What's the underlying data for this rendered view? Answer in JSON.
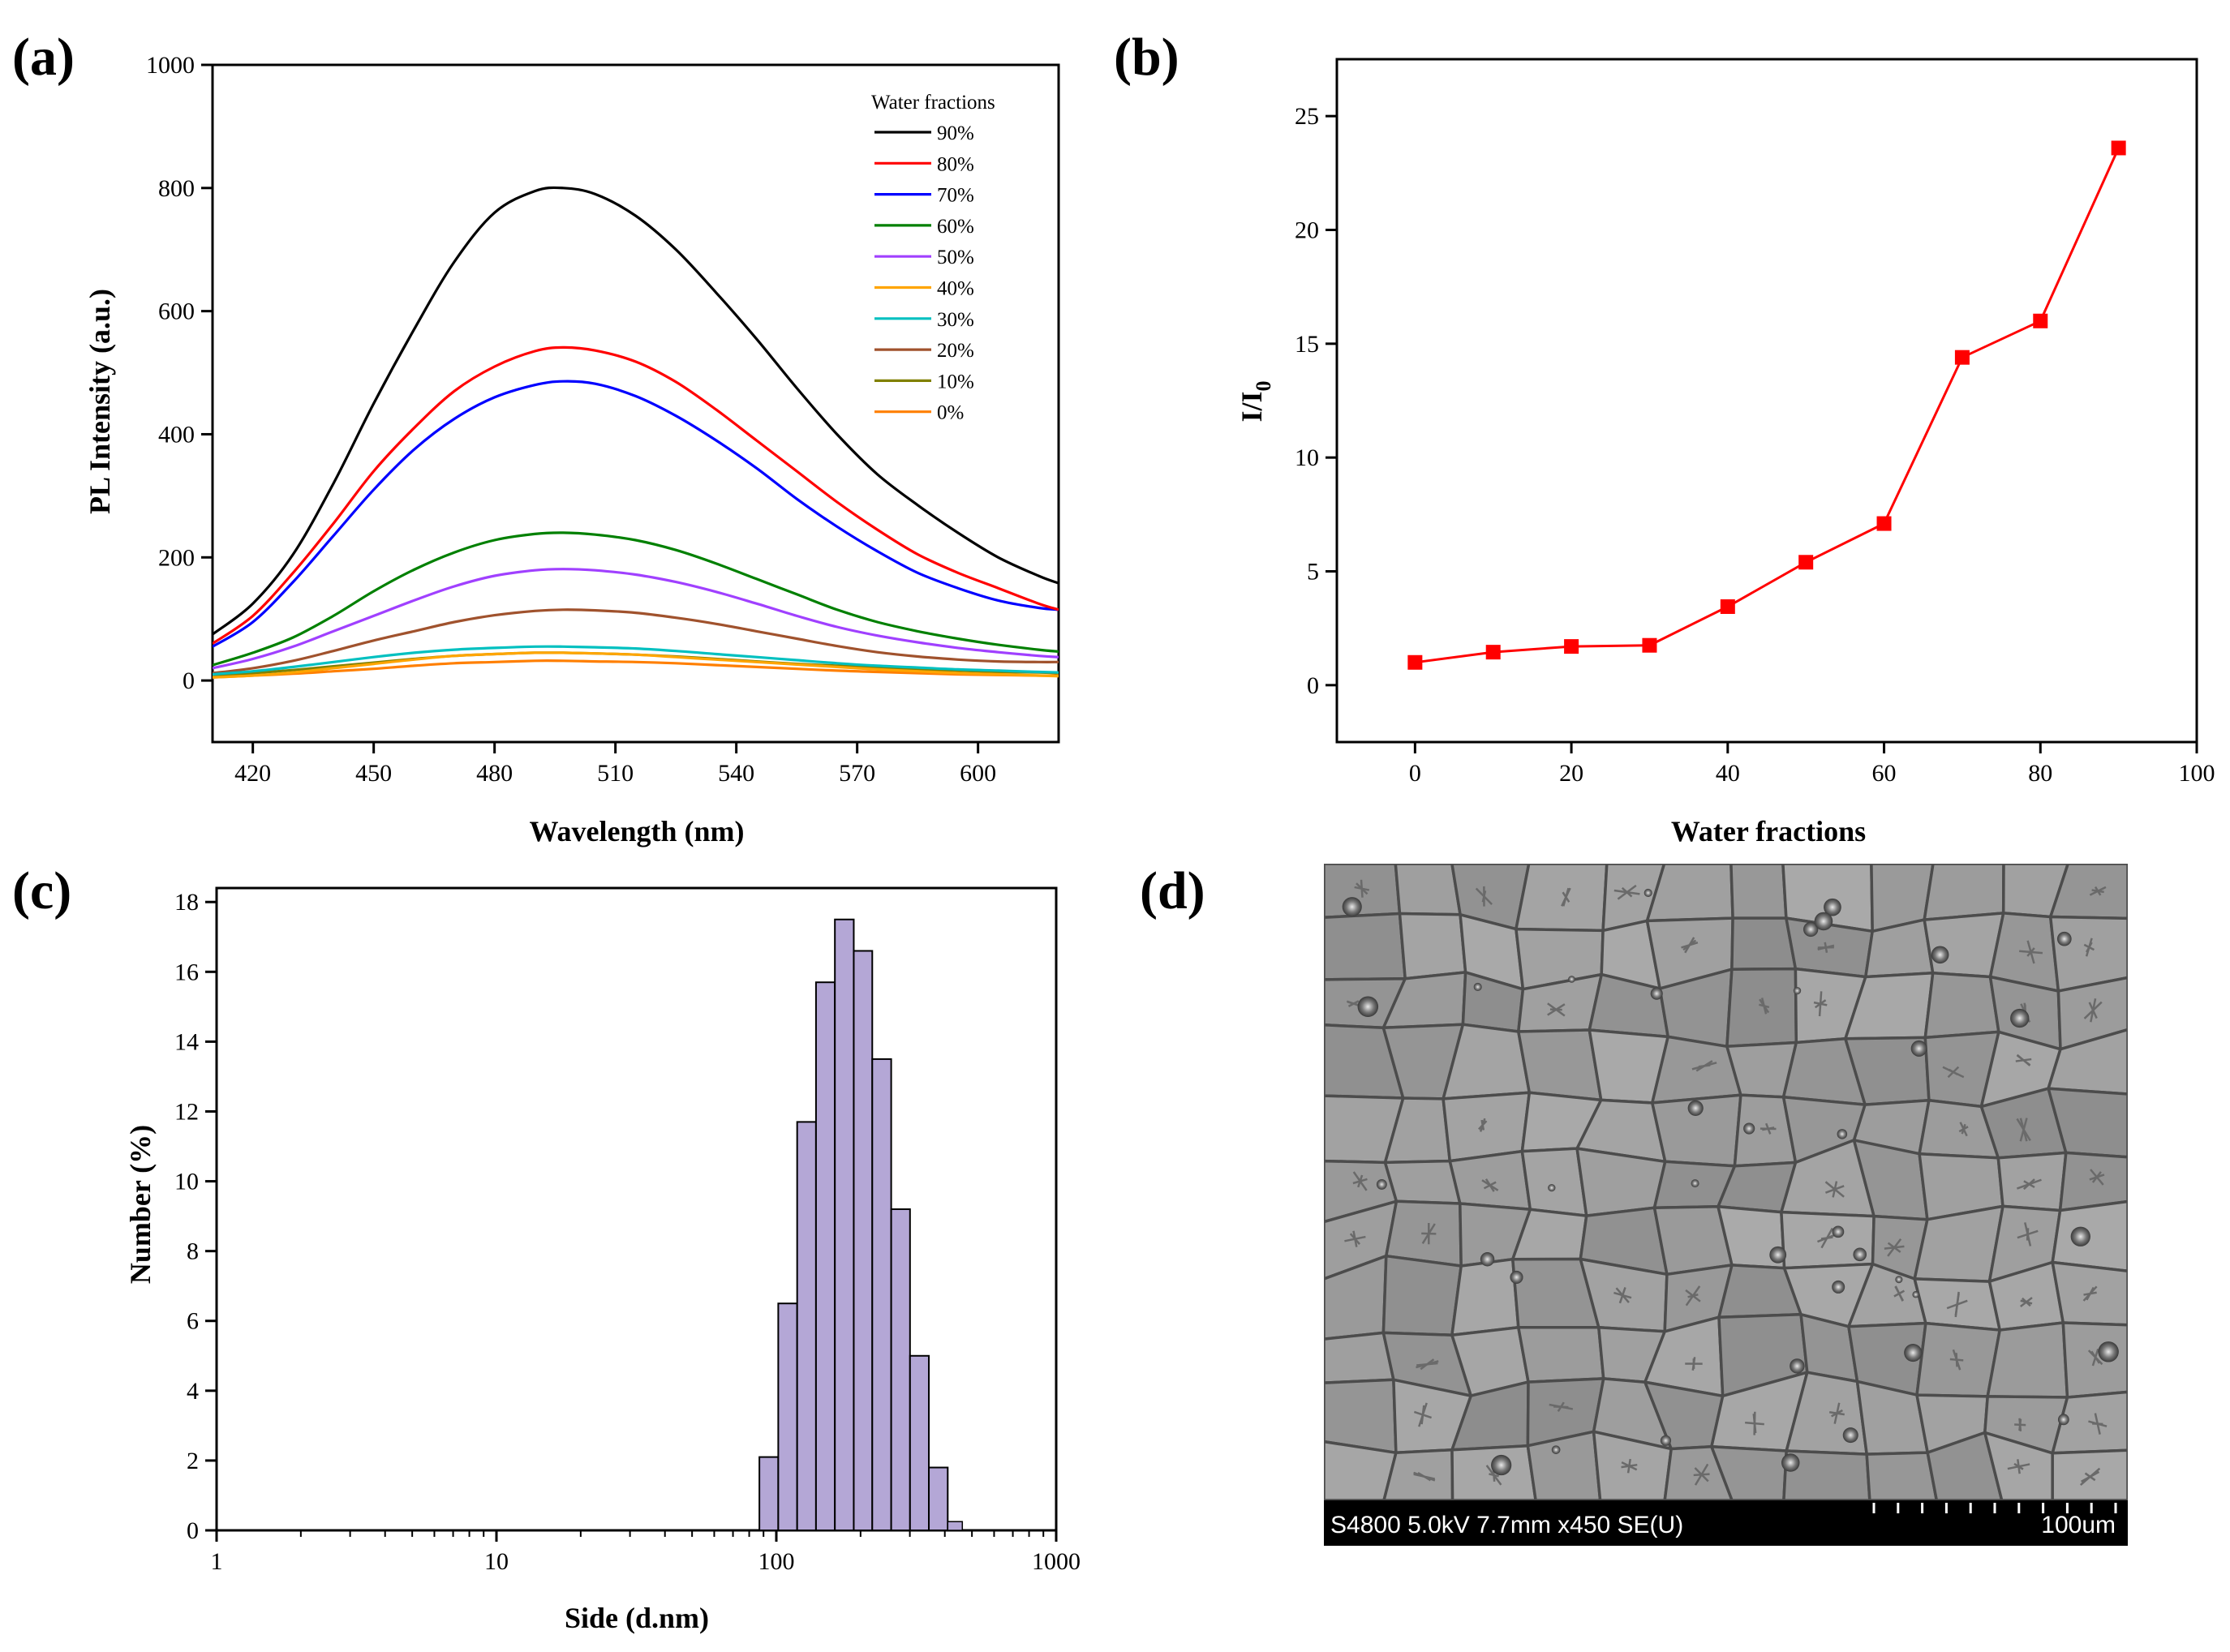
{
  "colors": {
    "axis": "#000000",
    "bar_fill": "#b4a7d6",
    "marker": "#ff0000"
  },
  "panels": {
    "a": {
      "label": "(a)"
    },
    "b": {
      "label": "(b)"
    },
    "c": {
      "label": "(c)"
    },
    "d": {
      "label": "(d)"
    }
  },
  "chart_data": [
    {
      "id": "a",
      "type": "line",
      "title": "",
      "xlabel": "Wavelength (nm)",
      "ylabel": "PL Intensity (a.u.)",
      "xlim": [
        410,
        620
      ],
      "ylim": [
        -100,
        1000
      ],
      "xticks": [
        420,
        450,
        480,
        510,
        540,
        570,
        600
      ],
      "yticks": [
        0,
        200,
        400,
        600,
        800,
        1000
      ],
      "legend_title": "Water fractions",
      "legend_position": "top-right",
      "peak_x": 497,
      "x": [
        410,
        420,
        430,
        440,
        450,
        460,
        470,
        480,
        490,
        497,
        505,
        515,
        525,
        535,
        545,
        555,
        565,
        575,
        585,
        595,
        605,
        615,
        620
      ],
      "series": [
        {
          "name": "90%",
          "color": "#000000",
          "peak": 800,
          "values": [
            75,
            125,
            205,
            320,
            450,
            570,
            680,
            760,
            795,
            800,
            790,
            755,
            700,
            630,
            555,
            475,
            400,
            335,
            285,
            240,
            200,
            170,
            158
          ]
        },
        {
          "name": "80%",
          "color": "#ff0000",
          "peak": 541,
          "values": [
            60,
            105,
            175,
            255,
            340,
            410,
            470,
            510,
            535,
            541,
            536,
            518,
            485,
            440,
            390,
            340,
            290,
            245,
            205,
            175,
            150,
            125,
            115
          ]
        },
        {
          "name": "70%",
          "color": "#0000ff",
          "peak": 486,
          "values": [
            55,
            95,
            160,
            235,
            310,
            375,
            425,
            460,
            480,
            486,
            482,
            462,
            430,
            390,
            345,
            295,
            250,
            210,
            175,
            150,
            130,
            118,
            115
          ]
        },
        {
          "name": "60%",
          "color": "#008000",
          "peak": 240,
          "values": [
            25,
            45,
            70,
            105,
            145,
            180,
            208,
            228,
            238,
            240,
            237,
            228,
            212,
            190,
            165,
            140,
            115,
            95,
            80,
            68,
            58,
            50,
            47
          ]
        },
        {
          "name": "50%",
          "color": "#a040ff",
          "peak": 181,
          "values": [
            20,
            35,
            55,
            80,
            105,
            130,
            153,
            170,
            179,
            181,
            179,
            172,
            160,
            144,
            125,
            105,
            87,
            73,
            62,
            53,
            46,
            40,
            38
          ]
        },
        {
          "name": "40%",
          "color": "#ffa500",
          "peak": 45,
          "values": [
            5,
            8,
            13,
            20,
            27,
            34,
            40,
            43,
            45,
            45,
            44,
            42,
            38,
            34,
            30,
            26,
            22,
            18,
            15,
            12,
            10,
            8,
            7
          ]
        },
        {
          "name": "30%",
          "color": "#00c0c0",
          "peak": 55,
          "values": [
            10,
            15,
            22,
            30,
            38,
            45,
            50,
            53,
            55,
            55,
            54,
            52,
            48,
            43,
            38,
            33,
            28,
            24,
            21,
            18,
            16,
            14,
            13
          ]
        },
        {
          "name": "20%",
          "color": "#a0522d",
          "peak": 115,
          "values": [
            12,
            20,
            32,
            48,
            65,
            80,
            95,
            106,
            113,
            115,
            114,
            110,
            102,
            92,
            80,
            68,
            56,
            46,
            39,
            34,
            31,
            30,
            30
          ]
        },
        {
          "name": "10%",
          "color": "#808000",
          "peak": 45,
          "values": [
            8,
            12,
            17,
            23,
            29,
            35,
            40,
            43,
            45,
            45,
            44,
            42,
            39,
            35,
            31,
            27,
            24,
            21,
            18,
            16,
            14,
            13,
            12
          ]
        },
        {
          "name": "0%",
          "color": "#ff7f00",
          "peak": 32,
          "values": [
            5,
            8,
            11,
            15,
            19,
            24,
            28,
            30,
            32,
            32,
            31,
            30,
            28,
            25,
            22,
            19,
            16,
            14,
            12,
            10,
            9,
            8,
            8
          ]
        }
      ]
    },
    {
      "id": "b",
      "type": "line",
      "title": "",
      "xlabel": "Water fractions",
      "ylabel": "I/I",
      "ylabel_subscript": "0",
      "xlim": [
        -10,
        100
      ],
      "ylim": [
        -2.5,
        27.5
      ],
      "xticks": [
        0,
        20,
        40,
        60,
        80,
        100
      ],
      "yticks": [
        0,
        5,
        10,
        15,
        20,
        25
      ],
      "marker": "square",
      "x": [
        0,
        10,
        20,
        30,
        40,
        50,
        60,
        70,
        80,
        90
      ],
      "values": [
        1.0,
        1.45,
        1.7,
        1.75,
        3.45,
        5.4,
        7.1,
        14.4,
        16.0,
        23.6
      ]
    },
    {
      "id": "c",
      "type": "bar",
      "title": "",
      "xlabel": "Side (d.nm)",
      "ylabel": "Number (%)",
      "xscale": "log",
      "xlim": [
        1,
        1000
      ],
      "ylim": [
        0,
        18.4
      ],
      "xtick_values": [
        1,
        10,
        100,
        1000
      ],
      "xticks": [
        "1",
        "10",
        "100",
        "1000"
      ],
      "yticks": [
        0,
        2,
        4,
        6,
        8,
        10,
        12,
        14,
        16,
        18
      ],
      "bin_edges": [
        87.0,
        101.6,
        118.7,
        138.6,
        161.9,
        189.1,
        220.2,
        257.3,
        300.4,
        350.8,
        409.7
      ],
      "values": [
        2.1,
        6.5,
        11.7,
        15.7,
        17.5,
        16.6,
        13.5,
        9.2,
        5.0,
        1.8
      ]
    }
  ],
  "sem": {
    "info": "S4800 5.0kV 7.7mm x450 SE(U)",
    "scale": "100um",
    "scale_ticks": 11
  }
}
